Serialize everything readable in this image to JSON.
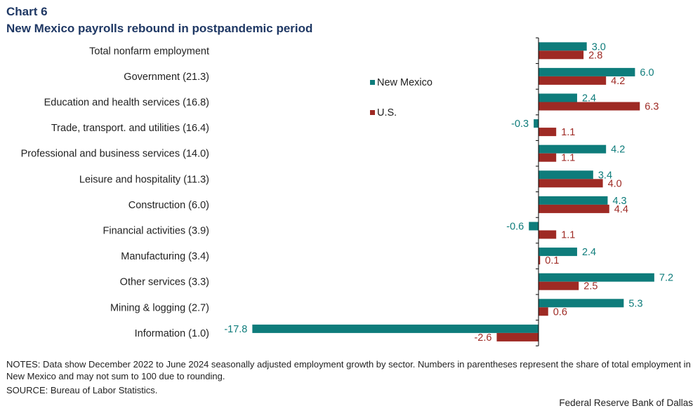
{
  "header": {
    "chart_number": "Chart 6",
    "title": "New Mexico payrolls rebound in postpandemic period"
  },
  "footer": {
    "notes": "NOTES: Data show December 2022 to June 2024 seasonally adjusted employment growth by sector. Numbers in parentheses represent the share of total employment in New Mexico and may not sum to 100 due to rounding.",
    "source": "SOURCE: Bureau of Labor Statistics.",
    "credit": "Federal Reserve Bank of Dallas"
  },
  "colors": {
    "new_mexico": "#0e7c7b",
    "us": "#9e2a24",
    "axis": "#000000"
  },
  "chart_data": {
    "type": "bar",
    "orientation": "horizontal",
    "categories": [
      "Total nonfarm employment",
      "Government (21.3)",
      "Education and health services (16.8)",
      "Trade, transport. and utilities (16.4)",
      "Professional and business services (14.0)",
      "Leisure and hospitality (11.3)",
      "Construction  (6.0)",
      "Financial activities (3.9)",
      "Manufacturing (3.4)",
      "Other services  (3.3)",
      "Mining & logging (2.7)",
      "Information (1.0)"
    ],
    "series": [
      {
        "name": "New Mexico",
        "values": [
          3.0,
          6.0,
          2.4,
          -0.3,
          4.2,
          3.4,
          4.3,
          -0.6,
          2.4,
          7.2,
          5.3,
          -17.8
        ],
        "labels": [
          "3.0",
          "6.0",
          "2.4",
          "-0.3",
          "4.2",
          "3.4",
          "4.3",
          "-0.6",
          "2.4",
          "7.2",
          "5.3",
          "-17.8"
        ]
      },
      {
        "name": "U.S.",
        "values": [
          2.8,
          4.2,
          6.3,
          1.1,
          1.1,
          4.0,
          4.4,
          1.1,
          0.1,
          2.5,
          0.6,
          -2.6
        ],
        "labels": [
          "2.8",
          "4.2",
          "6.3",
          "1.1",
          "1.1",
          "4.0",
          "4.4",
          "1.1",
          "0.1",
          "2.5",
          "0.6",
          "-2.6"
        ]
      }
    ],
    "legend": {
      "placement": "inside-center",
      "entries": [
        "New Mexico",
        "U.S."
      ]
    },
    "grid": false
  }
}
